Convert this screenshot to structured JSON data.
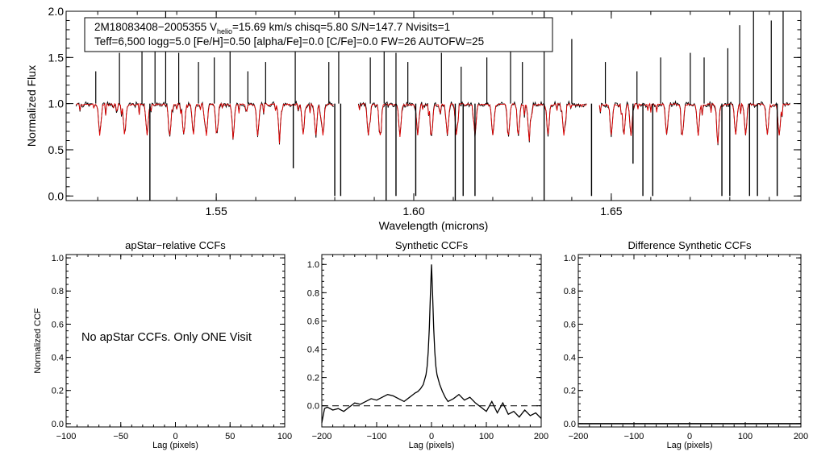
{
  "chart_data": [
    {
      "type": "line",
      "name": "spectrum",
      "xlabel": "Wavelength (microns)",
      "ylabel": "Normalized Flux",
      "xlim": [
        1.512,
        1.698
      ],
      "ylim": [
        -0.05,
        2.0
      ],
      "x_ticks": [
        1.55,
        1.6,
        1.65
      ],
      "x_tick_labels": [
        "1.55",
        "1.60",
        "1.65"
      ],
      "y_ticks": [
        0.0,
        0.5,
        1.0,
        1.5,
        2.0
      ],
      "y_tick_labels": [
        "0.0",
        "0.5",
        "1.0",
        "1.5",
        "2.0"
      ],
      "info_line1_a": "2M18083408−2005355  V",
      "info_line1_sub": "helio",
      "info_line1_b": "=15.69 km/s  chisq=5.80  S/N=147.7  Nvisits=1",
      "info_line2": "Teff=6,500 logg=5.0 [Fe/H]=0.50 [alpha/Fe]=0.0 [C/Fe]=0.0 FW=26 AUTOFW=25",
      "observed_color": "#000000",
      "model_color": "#e00000",
      "continuum": 1.0,
      "chip_ranges": [
        [
          1.5145,
          1.58
        ],
        [
          1.586,
          1.644
        ],
        [
          1.647,
          1.6955
        ]
      ],
      "emission_spikes": [
        [
          1.5195,
          1.35
        ],
        [
          1.5255,
          1.55
        ],
        [
          1.5312,
          1.75
        ],
        [
          1.5345,
          1.6
        ],
        [
          1.5372,
          2.0
        ],
        [
          1.5405,
          1.55
        ],
        [
          1.5455,
          1.45
        ],
        [
          1.5495,
          1.5
        ],
        [
          1.5535,
          1.6
        ],
        [
          1.558,
          1.35
        ],
        [
          1.5625,
          1.45
        ],
        [
          1.57,
          1.6
        ],
        [
          1.5785,
          1.45
        ],
        [
          1.581,
          2.0
        ],
        [
          1.589,
          1.5
        ],
        [
          1.5925,
          1.75
        ],
        [
          1.5955,
          1.55
        ],
        [
          1.5985,
          1.45
        ],
        [
          1.607,
          1.55
        ],
        [
          1.612,
          1.4
        ],
        [
          1.6185,
          1.5
        ],
        [
          1.6245,
          1.6
        ],
        [
          1.6275,
          1.45
        ],
        [
          1.633,
          2.0
        ],
        [
          1.64,
          1.7
        ],
        [
          1.6485,
          1.45
        ],
        [
          1.6565,
          1.35
        ],
        [
          1.6625,
          1.5
        ],
        [
          1.67,
          1.55
        ],
        [
          1.6735,
          1.5
        ],
        [
          1.6795,
          1.6
        ],
        [
          1.6825,
          1.85
        ],
        [
          1.686,
          2.0
        ],
        [
          1.6905,
          1.9
        ],
        [
          1.6935,
          2.0
        ]
      ],
      "absorption_dips": [
        [
          1.5332,
          -0.05
        ],
        [
          1.5695,
          0.3
        ],
        [
          1.58,
          0.0
        ],
        [
          1.5815,
          0.0
        ],
        [
          1.593,
          -0.05
        ],
        [
          1.5955,
          0.0
        ],
        [
          1.6005,
          0.0
        ],
        [
          1.6105,
          -0.05
        ],
        [
          1.6125,
          0.0
        ],
        [
          1.6155,
          0.0
        ],
        [
          1.633,
          -0.05
        ],
        [
          1.645,
          0.0
        ],
        [
          1.6555,
          0.35
        ],
        [
          1.658,
          0.0
        ],
        [
          1.6605,
          0.0
        ],
        [
          1.678,
          0.0
        ],
        [
          1.68,
          0.0
        ],
        [
          1.685,
          0.0
        ],
        [
          1.687,
          0.0
        ],
        [
          1.692,
          0.0
        ]
      ],
      "model_lines": [
        1.5205,
        1.5268,
        1.5325,
        1.5382,
        1.5418,
        1.5442,
        1.5475,
        1.5501,
        1.5543,
        1.5605,
        1.566,
        1.572,
        1.5752,
        1.577,
        1.5885,
        1.5915,
        1.5965,
        1.601,
        1.6045,
        1.6085,
        1.6108,
        1.6155,
        1.62,
        1.624,
        1.6265,
        1.6292,
        1.634,
        1.638,
        1.65,
        1.6532,
        1.655,
        1.664,
        1.668,
        1.672,
        1.677,
        1.6815,
        1.684,
        1.6895,
        1.6925
      ]
    },
    {
      "type": "line",
      "name": "apstar-ccf",
      "title": "apStar−relative CCFs",
      "xlabel": "Lag (pixels)",
      "ylabel": "Normalized CCF",
      "xlim": [
        -100,
        100
      ],
      "ylim": [
        -0.02,
        1.02
      ],
      "x_ticks": [
        -100,
        -50,
        0,
        50,
        100
      ],
      "x_tick_labels": [
        "−100",
        "−50",
        "0",
        "50",
        "100"
      ],
      "y_ticks": [
        0.0,
        0.2,
        0.4,
        0.6,
        0.8,
        1.0
      ],
      "y_tick_labels": [
        "0.0",
        "0.2",
        "0.4",
        "0.6",
        "0.8",
        "1.0"
      ],
      "annotation": "No apStar CCFs.  Only ONE Visit",
      "series": []
    },
    {
      "type": "line",
      "name": "synthetic-ccf",
      "title": "Synthetic CCFs",
      "xlabel": "Lag (pixels)",
      "ylabel": "",
      "xlim": [
        -200,
        200
      ],
      "ylim": [
        -0.15,
        1.07
      ],
      "x_ticks": [
        -200,
        -100,
        0,
        100,
        200
      ],
      "x_tick_labels": [
        "−200",
        "−100",
        "0",
        "100",
        "200"
      ],
      "y_ticks": [
        0.0,
        0.2,
        0.4,
        0.6,
        0.8,
        1.0
      ],
      "y_tick_labels": [
        "0.0",
        "0.2",
        "0.4",
        "0.6",
        "0.8",
        "1.0"
      ],
      "zero_line": 0.0,
      "x": [
        -200,
        -195,
        -190,
        -180,
        -170,
        -160,
        -150,
        -140,
        -130,
        -120,
        -110,
        -100,
        -90,
        -80,
        -70,
        -60,
        -50,
        -40,
        -30,
        -25,
        -20,
        -15,
        -10,
        -8,
        -6,
        -4,
        -2,
        0,
        2,
        4,
        6,
        8,
        10,
        15,
        20,
        25,
        30,
        40,
        50,
        60,
        70,
        80,
        90,
        100,
        110,
        120,
        130,
        140,
        150,
        160,
        170,
        180,
        190,
        200
      ],
      "y": [
        -0.12,
        -0.02,
        -0.01,
        -0.03,
        -0.02,
        -0.04,
        -0.01,
        0.02,
        0.01,
        0.03,
        0.05,
        0.04,
        0.06,
        0.08,
        0.07,
        0.05,
        0.03,
        0.06,
        0.09,
        0.1,
        0.12,
        0.15,
        0.22,
        0.28,
        0.38,
        0.55,
        0.78,
        1.0,
        0.78,
        0.55,
        0.38,
        0.28,
        0.22,
        0.15,
        0.1,
        0.06,
        0.03,
        0.05,
        0.08,
        0.04,
        0.06,
        0.02,
        -0.01,
        -0.04,
        0.03,
        -0.05,
        0.02,
        -0.06,
        -0.04,
        -0.08,
        -0.03,
        -0.07,
        -0.05,
        -0.09
      ]
    },
    {
      "type": "line",
      "name": "difference-ccf",
      "title": "Difference Synthetic CCFs",
      "xlabel": "Lag (pixels)",
      "ylabel": "",
      "xlim": [
        -200,
        200
      ],
      "ylim": [
        -0.02,
        1.02
      ],
      "x_ticks": [
        -200,
        -100,
        0,
        100,
        200
      ],
      "x_tick_labels": [
        "−200",
        "−100",
        "0",
        "100",
        "200"
      ],
      "y_ticks": [
        0.0,
        0.2,
        0.4,
        0.6,
        0.8,
        1.0
      ],
      "y_tick_labels": [
        "0.0",
        "0.2",
        "0.4",
        "0.6",
        "0.8",
        "1.0"
      ],
      "series": [
        {
          "x": [
            -200,
            200
          ],
          "y": [
            0.0,
            0.0
          ]
        }
      ]
    }
  ]
}
